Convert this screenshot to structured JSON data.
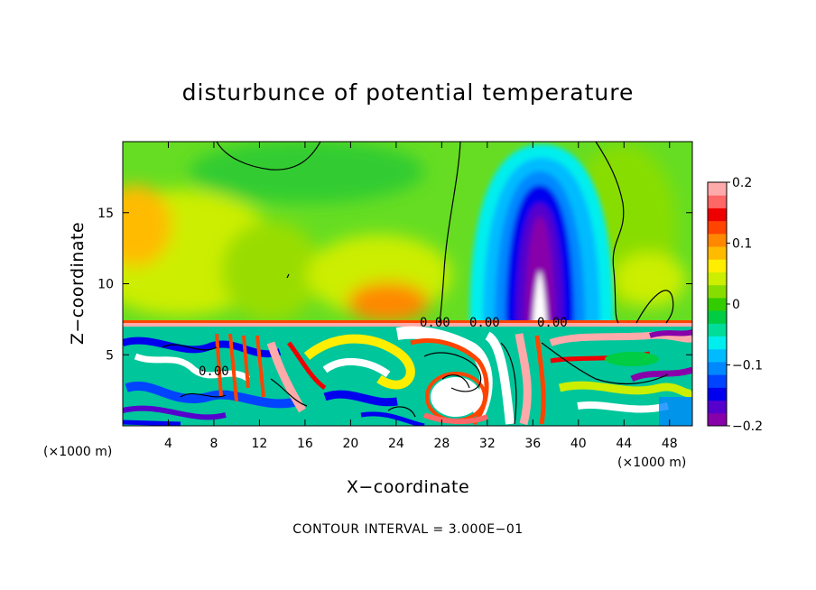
{
  "chart_data": {
    "type": "heatmap",
    "title": "disturbunce of potential temperature",
    "xlabel": "X−coordinate",
    "ylabel": "Z−coordinate",
    "x_unit_left": "(×1000 m)",
    "x_unit_right": "(×1000 m)",
    "xlim": [
      0,
      50
    ],
    "ylim": [
      0,
      20
    ],
    "x_ticks": [
      "4",
      "8",
      "12",
      "16",
      "20",
      "24",
      "28",
      "32",
      "36",
      "40",
      "44",
      "48"
    ],
    "x_tick_values": [
      4,
      8,
      12,
      16,
      20,
      24,
      28,
      32,
      36,
      40,
      44,
      48
    ],
    "y_ticks": [
      "5",
      "10",
      "15"
    ],
    "y_tick_values": [
      5,
      10,
      15
    ],
    "colorbar": {
      "min": -0.2,
      "max": 0.2,
      "tick_labels": [
        "0.2",
        "0.1",
        "0",
        "−0.1",
        "−0.2"
      ],
      "tick_values": [
        0.2,
        0.1,
        0,
        -0.1,
        -0.2
      ],
      "colors": [
        "#8800aa",
        "#5500cc",
        "#0000ee",
        "#0044ff",
        "#0088ff",
        "#00bbff",
        "#00eeee",
        "#00dd99",
        "#00cc44",
        "#33cc00",
        "#88dd00",
        "#ccee00",
        "#ffee00",
        "#ffbb00",
        "#ff8800",
        "#ff4400",
        "#ee0000",
        "#ff6666",
        "#ffaaaa"
      ]
    },
    "contour_labels": [
      "0.00",
      "0.00",
      "0.00",
      "0.00"
    ],
    "contour_interval_text": "CONTOUR INTERVAL = 3.000E−01",
    "field_summary": {
      "upper_layer_background": 0.02,
      "warm_anomaly_center": {
        "x": 23,
        "z": 9,
        "value": 0.12
      },
      "cold_plume_center": {
        "x": 36.5,
        "z": 13,
        "value": -0.2
      },
      "cold_plume_top_z": 20,
      "warm_band_z": 7.2,
      "lower_layer": "highly mixed turbulent field below z ≈ 7"
    }
  }
}
